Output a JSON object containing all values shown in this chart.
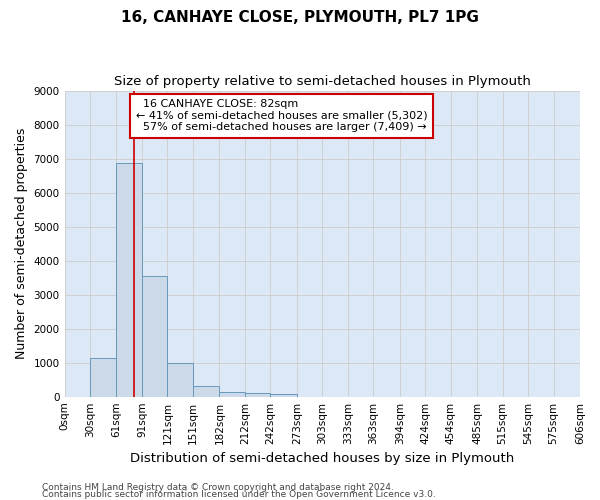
{
  "title": "16, CANHAYE CLOSE, PLYMOUTH, PL7 1PG",
  "subtitle": "Size of property relative to semi-detached houses in Plymouth",
  "xlabel": "Distribution of semi-detached houses by size in Plymouth",
  "ylabel": "Number of semi-detached properties",
  "footer_line1": "Contains HM Land Registry data © Crown copyright and database right 2024.",
  "footer_line2": "Contains public sector information licensed under the Open Government Licence v3.0.",
  "property_label": "16 CANHAYE CLOSE: 82sqm",
  "pct_smaller": 41,
  "count_smaller": 5302,
  "pct_larger": 57,
  "count_larger": 7409,
  "bin_edges": [
    0,
    30,
    61,
    91,
    121,
    151,
    182,
    212,
    242,
    273,
    303,
    333,
    363,
    394,
    424,
    454,
    485,
    515,
    545,
    575,
    606
  ],
  "bar_heights": [
    0,
    1130,
    6880,
    3560,
    1000,
    320,
    140,
    100,
    70,
    0,
    0,
    0,
    0,
    0,
    0,
    0,
    0,
    0,
    0,
    0
  ],
  "bar_color": "#ccd9e8",
  "bar_edge_color": "#6699bb",
  "vline_color": "#cc0000",
  "vline_x": 82,
  "annotation_box_color": "#cc0000",
  "grid_color": "#cccccc",
  "ylim": [
    0,
    9000
  ],
  "yticks": [
    0,
    1000,
    2000,
    3000,
    4000,
    5000,
    6000,
    7000,
    8000,
    9000
  ],
  "bg_color": "#dce8f5",
  "title_fontsize": 11,
  "subtitle_fontsize": 9.5,
  "axis_label_fontsize": 9,
  "tick_fontsize": 7.5,
  "annotation_fontsize": 8,
  "footer_fontsize": 6.5
}
